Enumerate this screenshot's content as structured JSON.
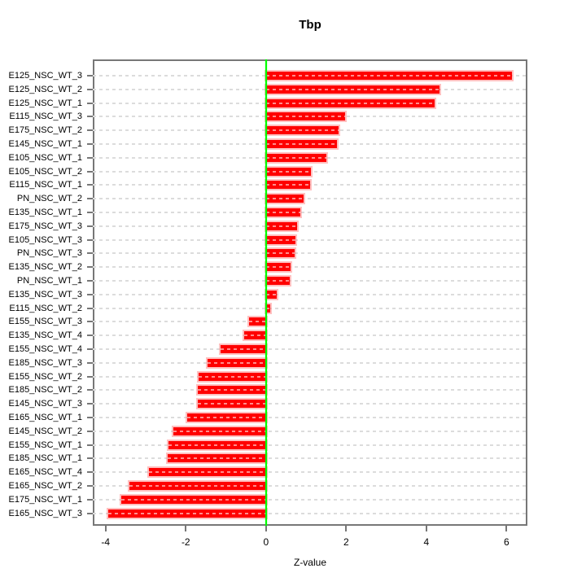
{
  "chart_data": {
    "type": "bar",
    "orientation": "horizontal",
    "title": "Tbp",
    "xlabel": "Z-value",
    "ylabel": "",
    "legend": "none",
    "grid": "dashed horizontal line per category",
    "xlim": [
      -4.32,
      6.52
    ],
    "xticks": [
      -4,
      -2,
      0,
      2,
      4,
      6
    ],
    "zero_reference_line": 0,
    "categories": [
      "E125_NSC_WT_3",
      "E125_NSC_WT_2",
      "E125_NSC_WT_1",
      "E115_NSC_WT_3",
      "E175_NSC_WT_2",
      "E145_NSC_WT_1",
      "E105_NSC_WT_1",
      "E105_NSC_WT_2",
      "E115_NSC_WT_1",
      "PN_NSC_WT_2",
      "E135_NSC_WT_1",
      "E175_NSC_WT_3",
      "E105_NSC_WT_3",
      "PN_NSC_WT_3",
      "E135_NSC_WT_2",
      "PN_NSC_WT_1",
      "E135_NSC_WT_3",
      "E115_NSC_WT_2",
      "E155_NSC_WT_3",
      "E135_NSC_WT_4",
      "E155_NSC_WT_4",
      "E185_NSC_WT_3",
      "E155_NSC_WT_2",
      "E185_NSC_WT_2",
      "E145_NSC_WT_3",
      "E165_NSC_WT_1",
      "E145_NSC_WT_2",
      "E155_NSC_WT_1",
      "E185_NSC_WT_1",
      "E165_NSC_WT_4",
      "E165_NSC_WT_2",
      "E175_NSC_WT_1",
      "E165_NSC_WT_3"
    ],
    "values": [
      6.13,
      4.32,
      4.21,
      1.97,
      1.81,
      1.78,
      1.51,
      1.12,
      1.1,
      0.93,
      0.85,
      0.77,
      0.74,
      0.72,
      0.61,
      0.59,
      0.26,
      0.11,
      -0.43,
      -0.54,
      -1.14,
      -1.45,
      -1.68,
      -1.7,
      -1.71,
      -1.96,
      -2.31,
      -2.44,
      -2.45,
      -2.91,
      -3.41,
      -3.6,
      -3.94
    ],
    "colors": {
      "bar": "#FF0000",
      "bar_halo": "#FF8C8C",
      "zero_line": "#00FF00",
      "grid_line": "#DCDCDC",
      "axis_box": "#777777",
      "text": "#000000",
      "background": "#FFFFFF"
    }
  }
}
